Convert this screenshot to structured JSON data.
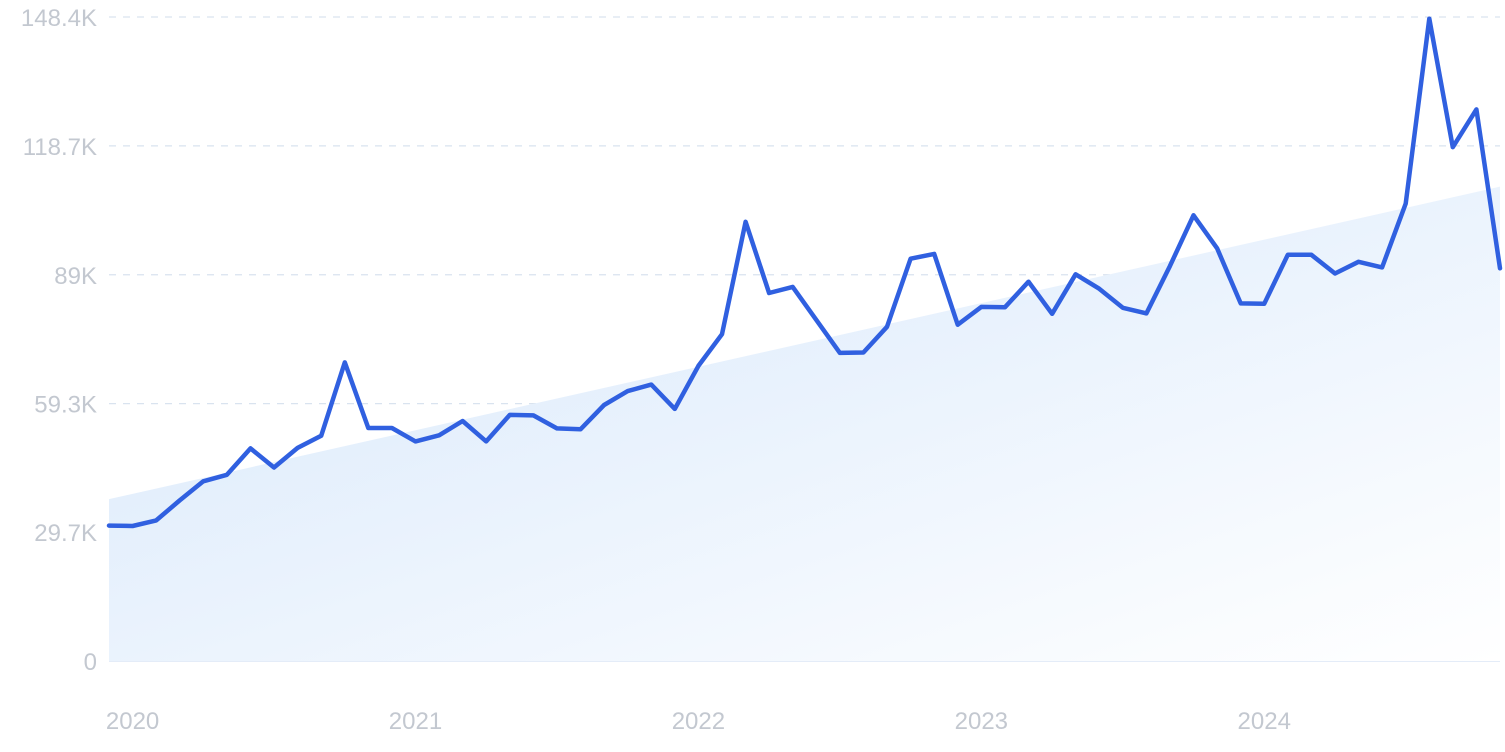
{
  "chart_data": {
    "type": "line",
    "title": "",
    "xlabel": "",
    "ylabel": "",
    "ylim": [
      0,
      148400
    ],
    "y_ticks": [
      {
        "value": 0,
        "label": "0"
      },
      {
        "value": 29700,
        "label": "29.7K"
      },
      {
        "value": 59300,
        "label": "59.3K"
      },
      {
        "value": 89000,
        "label": "89K"
      },
      {
        "value": 118700,
        "label": "118.7K"
      },
      {
        "value": 148400,
        "label": "148.4K"
      }
    ],
    "x_ticks": [
      {
        "value": 2020.0,
        "label": "2020"
      },
      {
        "value": 2021.0,
        "label": "2021"
      },
      {
        "value": 2022.0,
        "label": "2022"
      },
      {
        "value": 2023.0,
        "label": "2023"
      },
      {
        "value": 2024.0,
        "label": "2024"
      }
    ],
    "grid": "horizontal dashed",
    "series_color": "#3060e0",
    "trend_fill_color": "#dbe9fa",
    "x": [
      "2019-12",
      "2020-01",
      "2020-02",
      "2020-03",
      "2020-04",
      "2020-05",
      "2020-06",
      "2020-07",
      "2020-08",
      "2020-09",
      "2020-10",
      "2020-11",
      "2020-12",
      "2021-01",
      "2021-02",
      "2021-03",
      "2021-04",
      "2021-05",
      "2021-06",
      "2021-07",
      "2021-08",
      "2021-09",
      "2021-10",
      "2021-11",
      "2021-12",
      "2022-01",
      "2022-02",
      "2022-03",
      "2022-04",
      "2022-05",
      "2022-06",
      "2022-07",
      "2022-08",
      "2022-09",
      "2022-10",
      "2022-11",
      "2022-12",
      "2023-01",
      "2023-02",
      "2023-03",
      "2023-04",
      "2023-05",
      "2023-06",
      "2023-07",
      "2023-08",
      "2023-09",
      "2023-10",
      "2023-11",
      "2023-12",
      "2024-01",
      "2024-02",
      "2024-03",
      "2024-04",
      "2024-05",
      "2024-06",
      "2024-07",
      "2024-08",
      "2024-09",
      "2024-10",
      "2024-11"
    ],
    "series": [
      {
        "values": [
          31200,
          31100,
          32400,
          37000,
          41400,
          42900,
          49000,
          44600,
          49100,
          51900,
          68800,
          53700,
          53700,
          50600,
          52000,
          55300,
          50600,
          56700,
          56600,
          53600,
          53400,
          59000,
          62200,
          63700,
          58100,
          68000,
          75300,
          101200,
          84800,
          86200,
          78600,
          71000,
          71100,
          77000,
          92700,
          93800,
          77500,
          81600,
          81500,
          87400,
          80000,
          89100,
          85800,
          81400,
          80100,
          91000,
          102700,
          95100,
          82400,
          82300,
          93600,
          93600,
          89300,
          92000,
          90700,
          105400,
          148000,
          118400,
          127100,
          90500
        ]
      }
    ],
    "trend": {
      "start": 37300,
      "end": 109300
    }
  }
}
